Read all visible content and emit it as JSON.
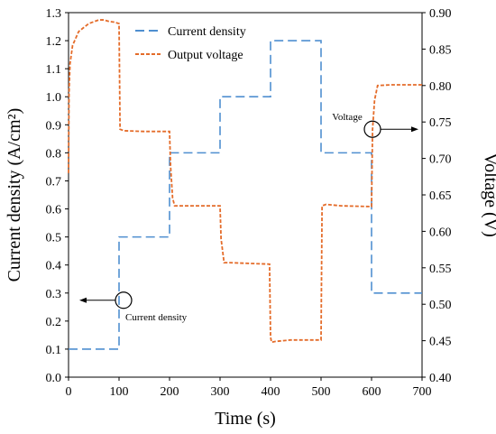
{
  "chart_data": {
    "type": "line",
    "xlabel": "Time (s)",
    "ylabel_left": "Current density (A/cm²)",
    "ylabel_right": "Voltage (V)",
    "xlim": [
      0,
      700
    ],
    "ylim_left": [
      0,
      1.3
    ],
    "ylim_right": [
      0.4,
      0.9
    ],
    "x_ticks": [
      "0",
      "100",
      "200",
      "300",
      "400",
      "500",
      "600",
      "700"
    ],
    "y_left_ticks": [
      "0.0",
      "0.1",
      "0.2",
      "0.3",
      "0.4",
      "0.5",
      "0.6",
      "0.7",
      "0.8",
      "0.9",
      "1.0",
      "1.1",
      "1.2",
      "1.3"
    ],
    "y_right_ticks": [
      "0.40",
      "0.45",
      "0.50",
      "0.55",
      "0.60",
      "0.65",
      "0.70",
      "0.75",
      "0.80",
      "0.85",
      "0.90"
    ],
    "grid": false,
    "legend_position": "top-center",
    "series": [
      {
        "name": "Current density",
        "axis": "left",
        "color": "#4f8fd0",
        "style": "long-dash",
        "x": [
          0,
          100,
          100,
          200,
          200,
          300,
          300,
          400,
          400,
          500,
          500,
          600,
          600,
          700
        ],
        "y": [
          0.1,
          0.1,
          0.5,
          0.5,
          0.8,
          0.8,
          1.0,
          1.0,
          1.2,
          1.2,
          0.8,
          0.8,
          0.3,
          0.3
        ]
      },
      {
        "name": "Output voltage",
        "axis": "right",
        "color": "#e46c2a",
        "style": "short-dash",
        "x": [
          0,
          1,
          3,
          8,
          20,
          40,
          60,
          70,
          80,
          90,
          100,
          102,
          110,
          150,
          190,
          200,
          202,
          206,
          210,
          300,
          302,
          308,
          320,
          398,
          400,
          402,
          410,
          440,
          498,
          500,
          502,
          510,
          540,
          598,
          600,
          602,
          606,
          612,
          640,
          700
        ],
        "y": [
          0.68,
          0.79,
          0.83,
          0.855,
          0.874,
          0.885,
          0.89,
          0.89,
          0.888,
          0.887,
          0.885,
          0.74,
          0.738,
          0.737,
          0.737,
          0.737,
          0.69,
          0.646,
          0.635,
          0.635,
          0.59,
          0.557,
          0.557,
          0.555,
          0.455,
          0.448,
          0.449,
          0.451,
          0.451,
          0.451,
          0.635,
          0.637,
          0.635,
          0.634,
          0.634,
          0.74,
          0.78,
          0.8,
          0.801,
          0.801
        ]
      }
    ],
    "annotations": [
      {
        "text": "Current density",
        "points_to": "left axis",
        "at_x": 100,
        "at_y_left": 0.3
      },
      {
        "text": "Voltage",
        "points_to": "right axis",
        "at_x": 600,
        "at_y_right": 0.745
      }
    ]
  }
}
